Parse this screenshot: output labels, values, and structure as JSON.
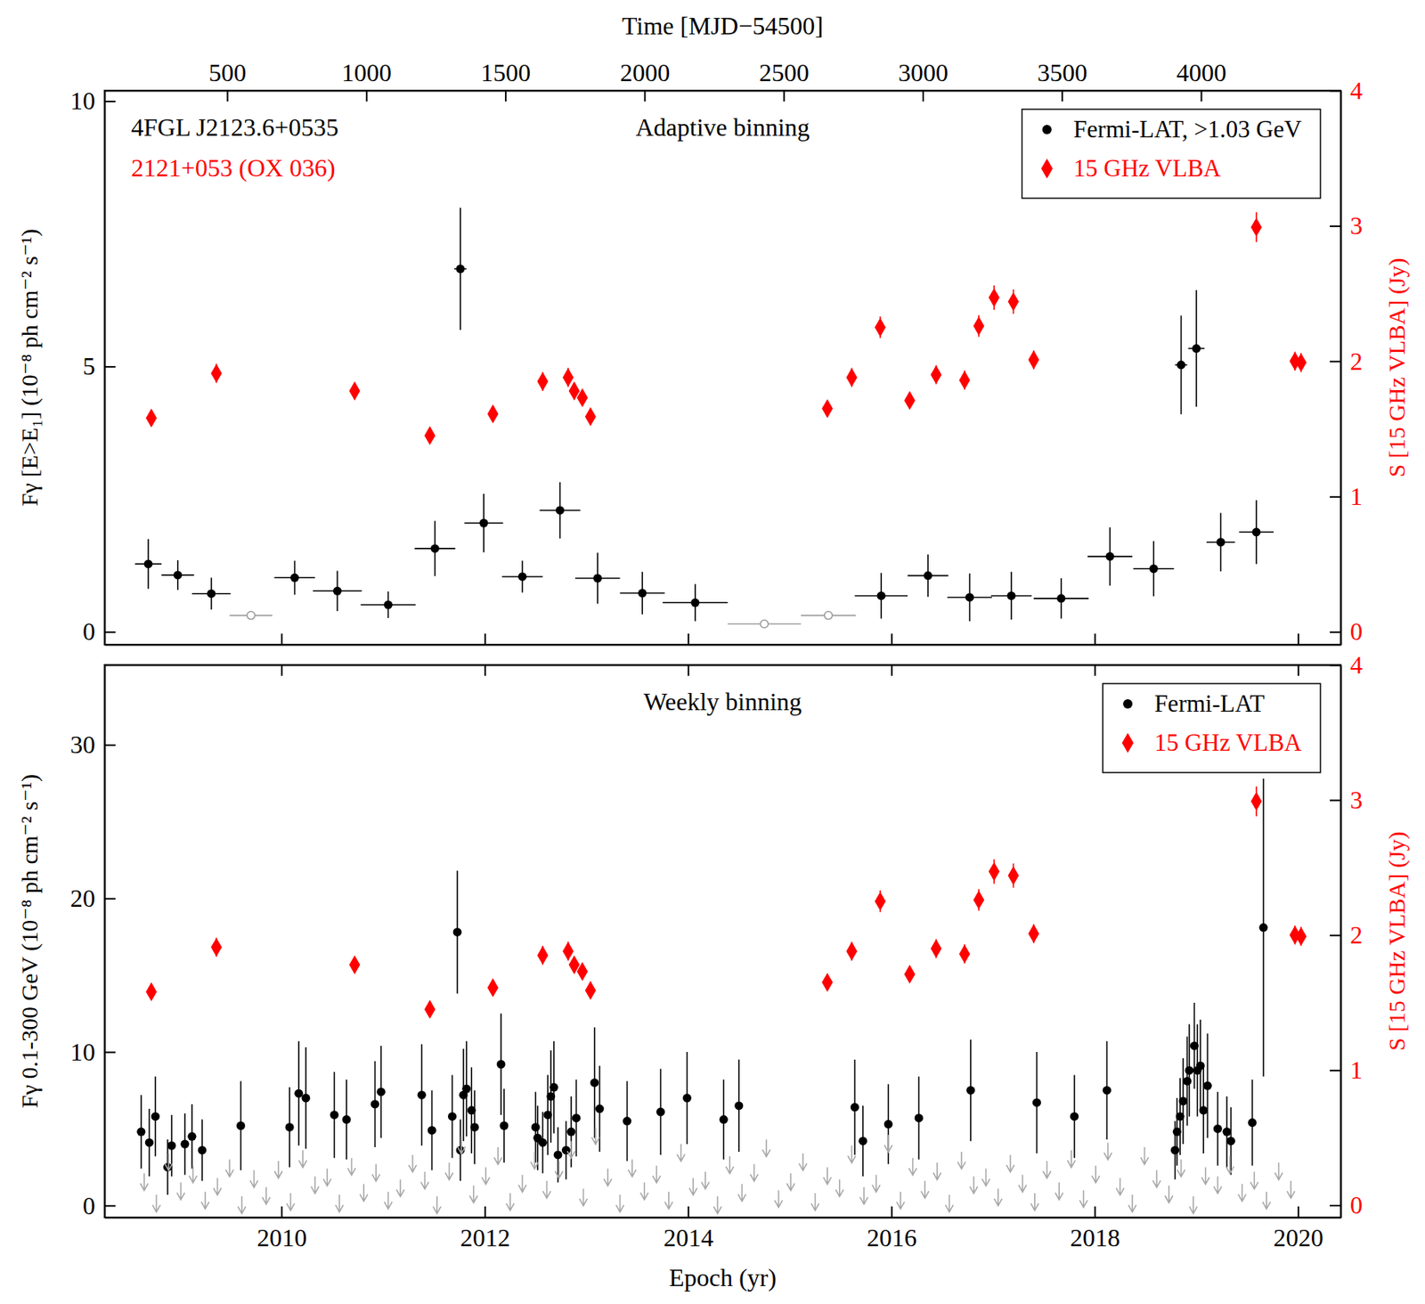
{
  "chart_data": [
    {
      "type": "scatter",
      "title": "Adaptive binning",
      "annotations": [
        "4FGL J2123.6+0535",
        "2121+053 (OX 036)"
      ],
      "x2_label": "Time [MJD−54500]",
      "y_label": "Fγ [E>E₁] (10⁻⁸ ph cm⁻² s⁻¹)",
      "y2_label": "S [15 GHz VLBA] (Jy)",
      "xlim": [
        2008.26,
        2020.42
      ],
      "xticks": [
        2010,
        2012,
        2014,
        2016,
        2018,
        2020
      ],
      "x2lim": [
        59.5,
        4502
      ],
      "x2ticks": [
        500,
        1000,
        1500,
        2000,
        2500,
        3000,
        3500,
        4000
      ],
      "ylim": [
        -0.24,
        10.2
      ],
      "yticks": [
        0,
        5,
        10
      ],
      "y2lim": [
        -0.094,
        4.0
      ],
      "y2ticks": [
        0,
        1,
        2,
        3,
        4
      ],
      "tick_labels": "y",
      "legend": "upper right",
      "series": [
        {
          "name": "Fermi-LAT, >1.03 GeV",
          "color": "#000000",
          "marker": "circle",
          "x": [
            2008.69,
            2008.98,
            2009.31,
            2010.13,
            2010.55,
            2011.05,
            2011.51,
            2011.76,
            2011.99,
            2012.37,
            2012.74,
            2013.11,
            2013.55,
            2014.07,
            2015.9,
            2016.36,
            2016.77,
            2017.18,
            2017.67,
            2018.15,
            2018.58,
            2018.85,
            2019.0,
            2019.24,
            2019.59
          ],
          "values": [
            1.28,
            1.07,
            0.72,
            1.02,
            0.77,
            0.51,
            1.57,
            6.84,
            2.05,
            1.04,
            2.29,
            1.01,
            0.73,
            0.55,
            0.68,
            1.06,
            0.65,
            0.68,
            0.63,
            1.42,
            1.19,
            5.03,
            5.34,
            1.69,
            1.88
          ],
          "errors": [
            0.47,
            0.28,
            0.3,
            0.32,
            0.38,
            0.25,
            0.52,
            1.15,
            0.55,
            0.3,
            0.53,
            0.48,
            0.4,
            0.35,
            0.43,
            0.4,
            0.45,
            0.45,
            0.38,
            0.55,
            0.52,
            0.93,
            1.1,
            0.55,
            0.6
          ],
          "x_errors": [
            0.13,
            0.16,
            0.19,
            0.2,
            0.24,
            0.27,
            0.2,
            0.06,
            0.19,
            0.2,
            0.2,
            0.22,
            0.22,
            0.32,
            0.26,
            0.2,
            0.22,
            0.2,
            0.27,
            0.22,
            0.2,
            0.06,
            0.08,
            0.14,
            0.17
          ]
        },
        {
          "color": "#9a9a9a",
          "marker": "open-circle",
          "x": [
            2009.7,
            2014.75,
            2015.38
          ],
          "values": [
            0.31,
            0.15,
            0.31
          ],
          "x_errors": [
            0.21,
            0.36,
            0.27
          ]
        },
        {
          "name": "15 GHz VLBA",
          "color": "#ff0000",
          "marker": "diamond",
          "axis": "y2",
          "x": [
            2008.72,
            2009.36,
            2010.72,
            2011.46,
            2012.08,
            2012.57,
            2012.82,
            2012.88,
            2012.96,
            2013.04,
            2015.37,
            2015.61,
            2015.89,
            2016.18,
            2016.44,
            2016.72,
            2016.86,
            2017.01,
            2017.2,
            2017.4,
            2019.59,
            2019.97,
            2020.03
          ],
          "values": [
            1.58,
            1.91,
            1.78,
            1.45,
            1.61,
            1.85,
            1.88,
            1.78,
            1.73,
            1.59,
            1.65,
            1.88,
            2.25,
            1.71,
            1.9,
            1.86,
            2.26,
            2.47,
            2.44,
            2.01,
            2.99,
            2.0,
            1.99
          ],
          "errors": [
            0.06,
            0.07,
            0.06,
            0.05,
            0.06,
            0.07,
            0.07,
            0.06,
            0.06,
            0.06,
            0.06,
            0.07,
            0.08,
            0.06,
            0.07,
            0.07,
            0.08,
            0.09,
            0.09,
            0.07,
            0.11,
            0.07,
            0.07
          ]
        }
      ]
    },
    {
      "type": "scatter",
      "title": "Weekly binning",
      "x_label": "Epoch (yr)",
      "y_label": "Fγ 0.1-300 GeV (10⁻⁸ ph cm⁻² s⁻¹)",
      "y2_label": "S [15 GHz VLBA] (Jy)",
      "xlim": [
        2008.26,
        2020.42
      ],
      "xticks": [
        2010,
        2012,
        2014,
        2016,
        2018,
        2020
      ],
      "ylim": [
        -0.77,
        35.2
      ],
      "yticks": [
        0,
        10,
        20,
        30
      ],
      "y2lim": [
        -0.09,
        4.0
      ],
      "y2ticks": [
        0,
        1,
        2,
        3,
        4
      ],
      "legend": "upper right",
      "series": [
        {
          "name": "Fermi-LAT",
          "color": "#000000",
          "marker": "circle",
          "x": [
            2008.62,
            2008.7,
            2008.76,
            2008.88,
            2008.92,
            2009.05,
            2009.12,
            2009.22,
            2009.6,
            2010.08,
            2010.17,
            2010.24,
            2010.52,
            2010.64,
            2010.92,
            2010.98,
            2011.38,
            2011.48,
            2011.68,
            2011.73,
            2011.76,
            2011.79,
            2011.82,
            2011.87,
            2011.9,
            2012.16,
            2012.19,
            2012.5,
            2012.52,
            2012.57,
            2012.62,
            2012.65,
            2012.68,
            2012.72,
            2012.8,
            2012.85,
            2012.9,
            2013.08,
            2013.13,
            2013.4,
            2013.73,
            2013.99,
            2014.35,
            2014.5,
            2015.64,
            2015.72,
            2015.97,
            2016.27,
            2016.78,
            2017.43,
            2017.8,
            2018.12,
            2018.79,
            2018.81,
            2018.84,
            2018.87,
            2018.91,
            2018.93,
            2018.98,
            2019.01,
            2019.04,
            2019.07,
            2019.11,
            2019.21,
            2019.3,
            2019.34,
            2019.55,
            2019.66
          ],
          "values": [
            4.8,
            4.1,
            5.8,
            2.5,
            3.9,
            4.0,
            4.5,
            3.6,
            5.2,
            5.1,
            7.3,
            7.0,
            5.9,
            5.6,
            6.6,
            7.4,
            7.2,
            4.9,
            5.8,
            17.8,
            3.6,
            7.2,
            7.6,
            6.2,
            5.1,
            9.2,
            5.2,
            5.1,
            4.4,
            4.1,
            5.9,
            7.1,
            7.7,
            3.3,
            3.6,
            4.8,
            5.7,
            8.0,
            6.3,
            5.5,
            6.1,
            7.0,
            5.6,
            6.5,
            6.4,
            4.2,
            5.3,
            5.7,
            7.5,
            6.7,
            5.8,
            7.5,
            3.6,
            4.8,
            5.8,
            6.8,
            8.1,
            8.8,
            10.4,
            8.8,
            9.1,
            6.2,
            7.8,
            5.0,
            4.8,
            4.2,
            5.4,
            18.1
          ],
          "errors": [
            2.4,
            2.2,
            2.6,
            1.8,
            2.0,
            2.0,
            2.1,
            2.0,
            2.9,
            2.6,
            3.4,
            3.3,
            2.8,
            2.6,
            2.8,
            3.0,
            3.3,
            2.6,
            2.7,
            4.0,
            2.0,
            3.0,
            3.1,
            2.8,
            2.4,
            3.3,
            2.4,
            2.3,
            2.1,
            2.0,
            2.6,
            3.0,
            3.0,
            1.8,
            1.9,
            2.3,
            2.5,
            3.6,
            2.8,
            2.6,
            2.8,
            3.0,
            2.6,
            3.0,
            3.1,
            2.3,
            2.6,
            2.7,
            3.3,
            3.3,
            2.7,
            3.2,
            1.9,
            2.2,
            2.5,
            2.8,
            2.9,
            3.0,
            2.8,
            3.0,
            3.0,
            2.8,
            3.4,
            2.4,
            2.3,
            2.2,
            2.8,
            9.7
          ]
        },
        {
          "color": "#a8a8a8",
          "marker": "arrow-down",
          "x": [
            2008.65,
            2008.77,
            2008.89,
            2009.01,
            2009.13,
            2009.25,
            2009.37,
            2009.49,
            2009.61,
            2009.73,
            2009.85,
            2009.97,
            2010.09,
            2010.21,
            2010.33,
            2010.45,
            2010.57,
            2010.69,
            2010.81,
            2010.93,
            2011.05,
            2011.17,
            2011.29,
            2011.41,
            2011.53,
            2011.65,
            2011.77,
            2011.89,
            2012.01,
            2012.13,
            2012.25,
            2012.37,
            2012.49,
            2012.61,
            2012.73,
            2012.85,
            2012.97,
            2013.09,
            2013.21,
            2013.33,
            2013.45,
            2013.57,
            2013.69,
            2013.81,
            2013.93,
            2014.05,
            2014.17,
            2014.29,
            2014.41,
            2014.53,
            2014.65,
            2014.77,
            2014.89,
            2015.01,
            2015.13,
            2015.25,
            2015.37,
            2015.49,
            2015.61,
            2015.73,
            2015.85,
            2015.97,
            2016.09,
            2016.21,
            2016.33,
            2016.45,
            2016.57,
            2016.69,
            2016.81,
            2016.93,
            2017.05,
            2017.17,
            2017.29,
            2017.41,
            2017.53,
            2017.65,
            2017.77,
            2017.89,
            2018.01,
            2018.13,
            2018.25,
            2018.37,
            2018.49,
            2018.61,
            2018.73,
            2018.85,
            2018.97,
            2019.09,
            2019.21,
            2019.33,
            2019.45,
            2019.57,
            2019.69,
            2019.81,
            2019.93
          ],
          "values": [
            2.1,
            0.7,
            3.4,
            1.5,
            2.6,
            0.9,
            1.8,
            3.0,
            0.6,
            2.3,
            1.2,
            2.9,
            0.8,
            3.6,
            1.9,
            2.4,
            0.7,
            3.1,
            1.4,
            2.7,
            0.9,
            1.7,
            3.3,
            2.2,
            0.6,
            2.8,
            4.5,
            1.3,
            2.5,
            3.8,
            0.8,
            2.0,
            3.5,
            1.6,
            2.9,
            4.2,
            1.1,
            5.1,
            2.4,
            0.7,
            3.0,
            1.5,
            2.6,
            0.9,
            4.0,
            1.8,
            2.2,
            0.6,
            3.2,
            1.4,
            2.7,
            4.3,
            1.0,
            2.1,
            3.4,
            0.8,
            2.5,
            1.7,
            3.9,
            1.2,
            2.0,
            4.6,
            0.9,
            3.1,
            1.6,
            2.8,
            0.7,
            3.5,
            1.9,
            2.4,
            1.1,
            3.3,
            2.0,
            0.8,
            2.9,
            1.5,
            3.6,
            1.0,
            2.6,
            4.1,
            1.8,
            0.7,
            3.8,
            2.3,
            1.3,
            3.0,
            0.6,
            2.5,
            1.9,
            3.2,
            1.4,
            2.2,
            0.9,
            2.8,
            1.6
          ]
        },
        {
          "name": "15 GHz VLBA",
          "color": "#ff0000",
          "marker": "diamond",
          "axis": "y2",
          "x": [
            2008.72,
            2009.36,
            2010.72,
            2011.46,
            2012.08,
            2012.57,
            2012.82,
            2012.88,
            2012.96,
            2013.04,
            2015.37,
            2015.61,
            2015.89,
            2016.18,
            2016.44,
            2016.72,
            2016.86,
            2017.01,
            2017.2,
            2017.4,
            2019.59,
            2019.97,
            2020.03
          ],
          "values": [
            1.58,
            1.91,
            1.78,
            1.45,
            1.61,
            1.85,
            1.88,
            1.78,
            1.73,
            1.59,
            1.65,
            1.88,
            2.25,
            1.71,
            1.9,
            1.86,
            2.26,
            2.47,
            2.44,
            2.01,
            2.99,
            2.0,
            1.99
          ],
          "errors": [
            0.06,
            0.07,
            0.06,
            0.05,
            0.06,
            0.07,
            0.07,
            0.06,
            0.06,
            0.06,
            0.06,
            0.07,
            0.08,
            0.06,
            0.07,
            0.07,
            0.08,
            0.09,
            0.09,
            0.07,
            0.11,
            0.07,
            0.07
          ]
        }
      ]
    }
  ]
}
